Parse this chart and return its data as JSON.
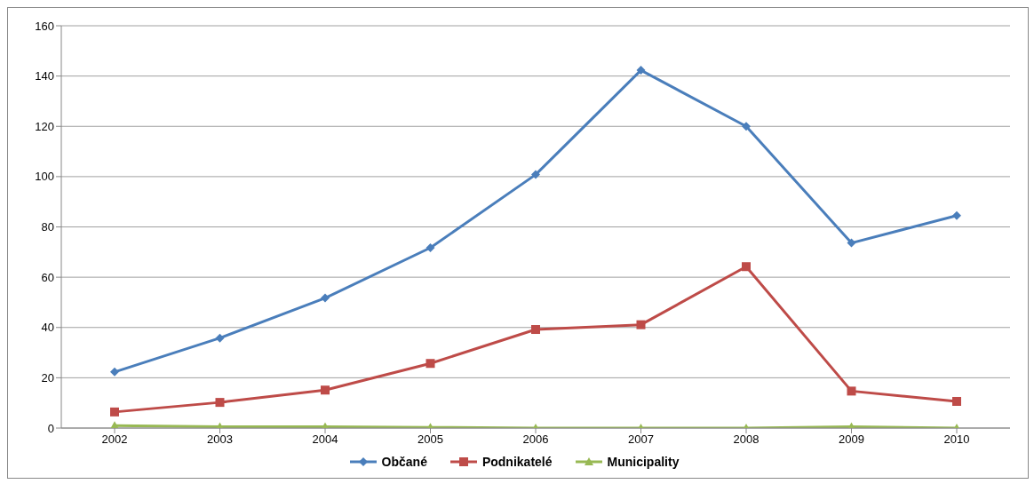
{
  "chart_data": {
    "type": "line",
    "categories": [
      "2002",
      "2003",
      "2004",
      "2005",
      "2006",
      "2007",
      "2008",
      "2009",
      "2010"
    ],
    "series": [
      {
        "name": "Občané",
        "color": "#4a7ebb",
        "marker": "diamond",
        "values": [
          22.3,
          35.8,
          51.7,
          71.7,
          100.8,
          142.3,
          120,
          73.6,
          84.5
        ]
      },
      {
        "name": "Podnikatelé",
        "color": "#be4b48",
        "marker": "square",
        "values": [
          6.4,
          10.2,
          15.1,
          25.7,
          39.2,
          41.1,
          64.2,
          14.7,
          10.6
        ]
      },
      {
        "name": "Municipality",
        "color": "#98b954",
        "marker": "triangle",
        "values": [
          1,
          0.5,
          0.5,
          0.3,
          0,
          0,
          0,
          0.5,
          0
        ]
      }
    ],
    "ylim": [
      0,
      160
    ],
    "yticks": [
      0,
      20,
      40,
      60,
      80,
      100,
      120,
      140,
      160
    ],
    "grid": "y",
    "legend": "bottom"
  }
}
